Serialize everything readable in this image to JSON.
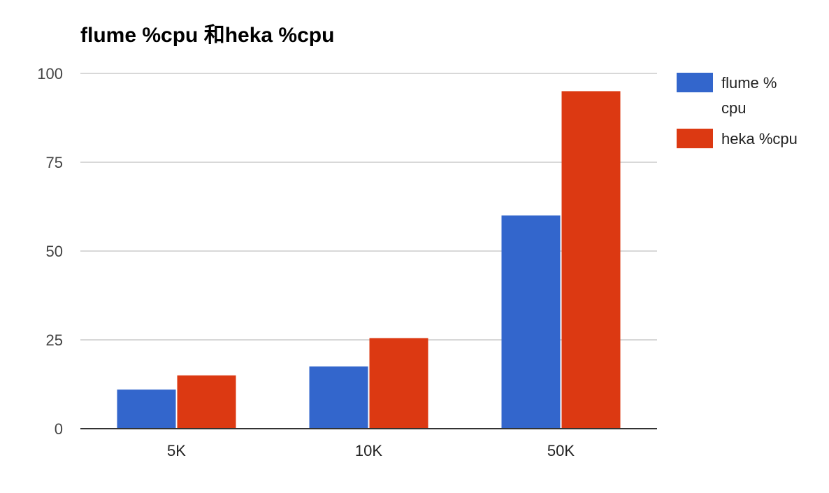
{
  "chart_data": {
    "type": "bar",
    "title": "flume %cpu 和heka %cpu",
    "xlabel": "",
    "ylabel": "",
    "categories": [
      "5K",
      "10K",
      "50K"
    ],
    "ylim": [
      0,
      100
    ],
    "yticks": [
      0,
      25,
      50,
      75,
      100
    ],
    "grid": true,
    "legend_position": "right",
    "series": [
      {
        "name": "flume %cpu",
        "legend_lines": [
          "flume %",
          "cpu"
        ],
        "color": "#3366cc",
        "values": [
          11,
          17.5,
          60
        ]
      },
      {
        "name": "heka %cpu",
        "legend_lines": [
          "heka %cpu"
        ],
        "color": "#dc3912",
        "values": [
          15,
          25.5,
          95
        ]
      }
    ]
  }
}
